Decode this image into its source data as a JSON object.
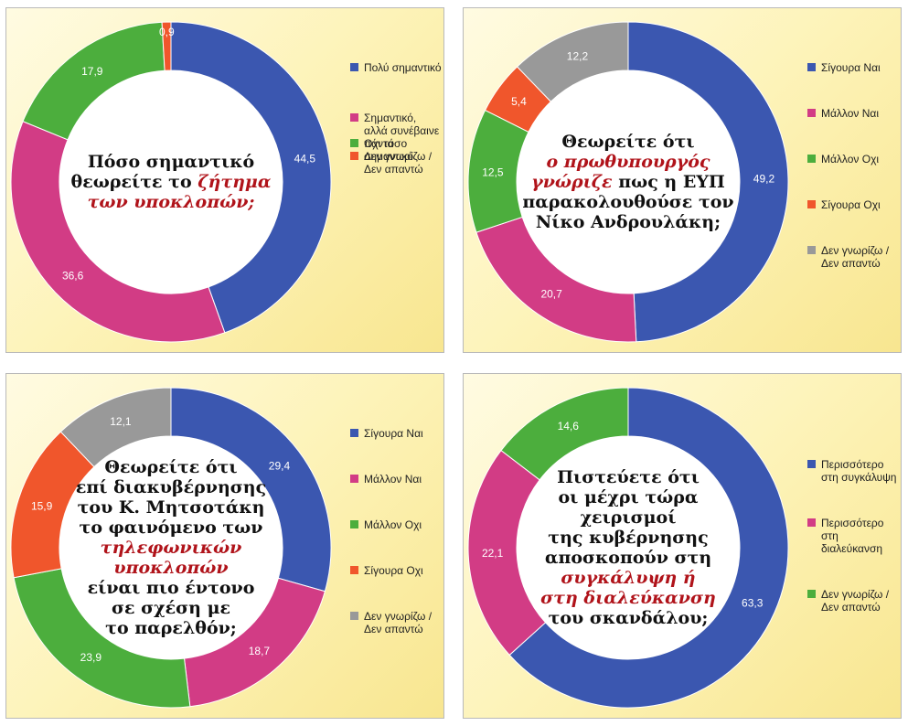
{
  "chart_data": [
    {
      "type": "pie",
      "question": [
        {
          "text": "Πόσο σημαντικό",
          "hl": false
        },
        {
          "text": "θεωρείτε το ",
          "hl": false,
          "tail": "ζήτημα",
          "tail_hl": true
        },
        {
          "text": "των υποκλοπών;",
          "hl": true
        }
      ],
      "slices": [
        {
          "label": "Πολύ σημαντικό",
          "value": 44.5,
          "display": "44,5",
          "color": "#3b57b0"
        },
        {
          "label": "Σημαντικό, αλλά συνέβαινε πάντα",
          "value": 36.6,
          "display": "36,6",
          "color": "#d23c85"
        },
        {
          "label": "Οχι τόσο σημαντικό",
          "value": 17.9,
          "display": "17,9",
          "color": "#4cae3d"
        },
        {
          "label": "Δεν γνωρίζω / Δεν απαντώ",
          "value": 0.9,
          "display": "0,9",
          "color": "#f0562c"
        }
      ]
    },
    {
      "type": "pie",
      "question": [
        {
          "text": "Θεωρείτε ότι",
          "hl": false
        },
        {
          "text": "ο πρωθυπουργός",
          "hl": true
        },
        {
          "text": "γνώριζε",
          "hl": true,
          "tail": " πως η ΕΥΠ",
          "tail_hl": false
        },
        {
          "text": "παρακολουθούσε τον",
          "hl": false
        },
        {
          "text": "Νίκο Ανδρουλάκη;",
          "hl": false
        }
      ],
      "slices": [
        {
          "label": "Σίγουρα Ναι",
          "value": 49.2,
          "display": "49,2",
          "color": "#3b57b0"
        },
        {
          "label": "Μάλλον Ναι",
          "value": 20.7,
          "display": "20,7",
          "color": "#d23c85"
        },
        {
          "label": "Μάλλον Οχι",
          "value": 12.5,
          "display": "12,5",
          "color": "#4cae3d"
        },
        {
          "label": "Σίγουρα Οχι",
          "value": 5.4,
          "display": "5,4",
          "color": "#f0562c"
        },
        {
          "label": "Δεν γνωρίζω / Δεν απαντώ",
          "value": 12.2,
          "display": "12,2",
          "color": "#999999"
        }
      ]
    },
    {
      "type": "pie",
      "question": [
        {
          "text": "Θεωρείτε ότι",
          "hl": false
        },
        {
          "text": "επί διακυβέρνησης",
          "hl": false
        },
        {
          "text": "του Κ. Μητσοτάκη",
          "hl": false
        },
        {
          "text": "το φαινόμενο των",
          "hl": false
        },
        {
          "text": "τηλεφωνικών υποκλοπών",
          "hl": true
        },
        {
          "text": "είναι πιο έντονο",
          "hl": false
        },
        {
          "text": "σε σχέση με",
          "hl": false
        },
        {
          "text": "το παρελθόν;",
          "hl": false
        }
      ],
      "slices": [
        {
          "label": "Σίγουρα Ναι",
          "value": 29.4,
          "display": "29,4",
          "color": "#3b57b0"
        },
        {
          "label": "Μάλλον Ναι",
          "value": 18.7,
          "display": "18,7",
          "color": "#d23c85"
        },
        {
          "label": "Μάλλον Οχι",
          "value": 23.9,
          "display": "23,9",
          "color": "#4cae3d"
        },
        {
          "label": "Σίγουρα Οχι",
          "value": 15.9,
          "display": "15,9",
          "color": "#f0562c"
        },
        {
          "label": "Δεν γνωρίζω / Δεν απαντώ",
          "value": 12.1,
          "display": "12,1",
          "color": "#999999"
        }
      ]
    },
    {
      "type": "pie",
      "question": [
        {
          "text": "Πιστεύετε ότι",
          "hl": false
        },
        {
          "text": "οι μέχρι τώρα χειρισμοί",
          "hl": false
        },
        {
          "text": "της κυβέρνησης",
          "hl": false
        },
        {
          "text": "αποσκοπούν στη",
          "hl": false
        },
        {
          "text": "συγκάλυψη ή",
          "hl": true
        },
        {
          "text": "στη διαλεύκανση",
          "hl": true
        },
        {
          "text": "του σκανδάλου;",
          "hl": false
        }
      ],
      "slices": [
        {
          "label": "Περισσότερο στη συγκάλυψη",
          "value": 63.3,
          "display": "63,3",
          "color": "#3b57b0"
        },
        {
          "label": "Περισσότερο στη διαλεύκανση",
          "value": 22.1,
          "display": "22,1",
          "color": "#d23c85"
        },
        {
          "label": "Δεν γνωρίζω / Δεν απαντώ",
          "value": 14.6,
          "display": "14,6",
          "color": "#4cae3d"
        }
      ]
    }
  ]
}
